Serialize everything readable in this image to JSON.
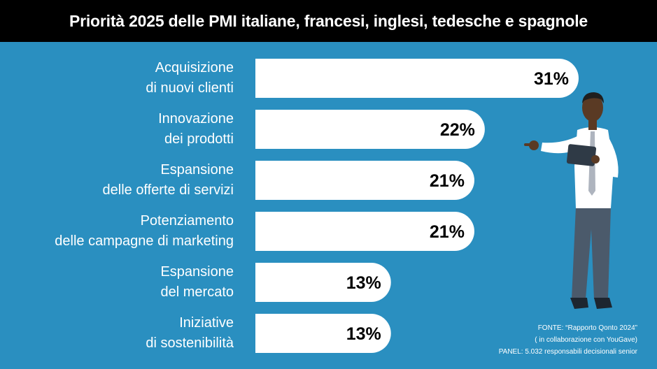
{
  "header": {
    "title": "Priorità 2025 delle PMI italiane, francesi, inglesi, tedesche e spagnole"
  },
  "chart_data": {
    "type": "bar",
    "orientation": "horizontal",
    "title": "Priorità 2025 delle PMI italiane, francesi, inglesi, tedesche e spagnole",
    "categories": [
      [
        "Acquisizione",
        "di nuovi clienti"
      ],
      [
        "Innovazione",
        "dei prodotti"
      ],
      [
        "Espansione",
        "delle offerte di servizi"
      ],
      [
        "Potenziamento",
        "delle campagne di marketing"
      ],
      [
        "Espansione",
        "del mercato"
      ],
      [
        "Iniziative",
        "di sostenibilità"
      ]
    ],
    "values": [
      31,
      22,
      21,
      21,
      13,
      13
    ],
    "value_labels": [
      "31%",
      "22%",
      "21%",
      "21%",
      "13%",
      "13%"
    ],
    "unit": "%",
    "xlabel": "",
    "ylabel": ""
  },
  "source": {
    "line1": "FONTE: “Rapporto Qonto 2024”",
    "line2": "( in collaborazione con YouGave)",
    "line3": "PANEL: 5.032 responsabili decisionali senior"
  },
  "colors": {
    "background": "#2a8fc0",
    "bar": "#ffffff",
    "header": "#000000"
  }
}
